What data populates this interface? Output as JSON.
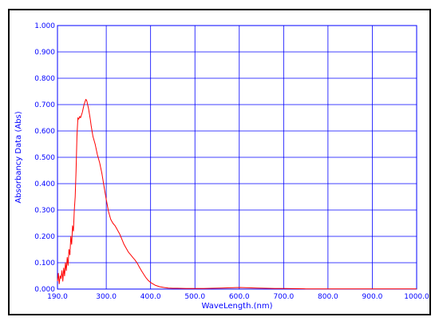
{
  "colors": {
    "axis": "#0000ff",
    "grid": "#0000ff",
    "series": "#ff0000",
    "frame": "#000000",
    "background": "#ffffff"
  },
  "chart_data": {
    "type": "line",
    "title": "",
    "xlabel": "WaveLength.(nm)",
    "ylabel": "Absorbancy Data (Abs)",
    "xlim": [
      190.0,
      1000.0
    ],
    "ylim": [
      0.0,
      1.0
    ],
    "grid": true,
    "legend": "none",
    "x_ticks": [
      "190.0",
      "300.0",
      "400.0",
      "500.0",
      "600.0",
      "700.0",
      "800.0",
      "900.0",
      "1000.0"
    ],
    "x_tick_values": [
      190,
      300,
      400,
      500,
      600,
      700,
      800,
      900,
      1000
    ],
    "y_ticks": [
      "0.000",
      "0.100",
      "0.200",
      "0.300",
      "0.400",
      "0.500",
      "0.600",
      "0.700",
      "0.800",
      "0.900",
      "1.000"
    ],
    "y_tick_values": [
      0,
      0.1,
      0.2,
      0.3,
      0.4,
      0.5,
      0.6,
      0.7,
      0.8,
      0.9,
      1.0
    ],
    "series": [
      {
        "x": [
          190,
          192,
          194,
          196,
          198,
          200,
          202,
          204,
          206,
          208,
          210,
          212,
          214,
          216,
          218,
          220,
          222,
          224,
          226,
          228,
          230,
          232,
          234,
          236,
          238,
          240,
          242,
          244,
          246,
          248,
          250,
          252,
          254,
          256,
          258,
          260,
          262,
          264,
          266,
          268,
          270,
          275,
          280,
          285,
          290,
          295,
          300,
          305,
          310,
          315,
          320,
          325,
          330,
          335,
          340,
          345,
          350,
          355,
          360,
          365,
          370,
          375,
          380,
          385,
          390,
          395,
          400,
          410,
          420,
          430,
          440,
          450,
          460,
          480,
          500,
          520,
          540,
          560,
          580,
          600,
          620,
          640,
          660,
          680,
          700,
          750,
          800,
          850,
          900,
          950,
          1000
        ],
        "y": [
          0.03,
          0.06,
          0.02,
          0.05,
          0.04,
          0.07,
          0.03,
          0.08,
          0.05,
          0.1,
          0.07,
          0.12,
          0.09,
          0.15,
          0.13,
          0.2,
          0.17,
          0.24,
          0.22,
          0.3,
          0.35,
          0.45,
          0.58,
          0.65,
          0.645,
          0.655,
          0.65,
          0.66,
          0.67,
          0.685,
          0.7,
          0.71,
          0.72,
          0.715,
          0.7,
          0.685,
          0.665,
          0.645,
          0.62,
          0.6,
          0.58,
          0.55,
          0.51,
          0.48,
          0.44,
          0.39,
          0.34,
          0.295,
          0.265,
          0.25,
          0.24,
          0.225,
          0.21,
          0.19,
          0.17,
          0.155,
          0.14,
          0.13,
          0.12,
          0.11,
          0.098,
          0.082,
          0.068,
          0.055,
          0.042,
          0.032,
          0.025,
          0.015,
          0.009,
          0.006,
          0.004,
          0.003,
          0.003,
          0.002,
          0.002,
          0.002,
          0.003,
          0.004,
          0.005,
          0.006,
          0.005,
          0.004,
          0.003,
          0.002,
          0.002,
          0.001,
          0.001,
          0.001,
          0.001,
          0.001,
          0.001
        ]
      }
    ]
  }
}
